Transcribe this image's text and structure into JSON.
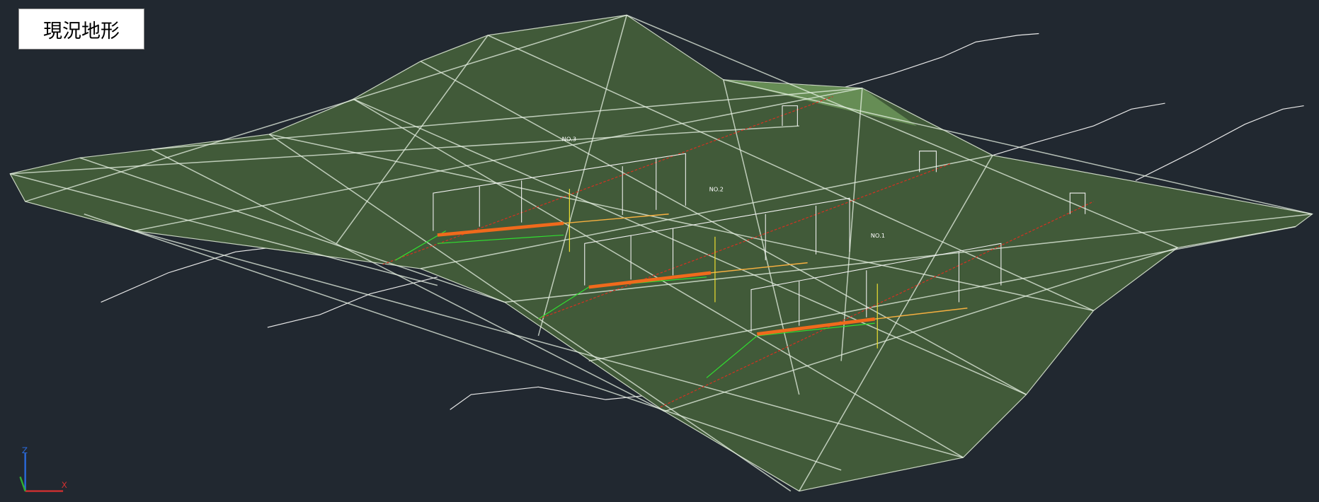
{
  "label": "現況地形",
  "axis": {
    "z": "Z",
    "x": "X"
  },
  "stations": [
    "NO.3",
    "NO.2",
    "NO.1"
  ]
}
